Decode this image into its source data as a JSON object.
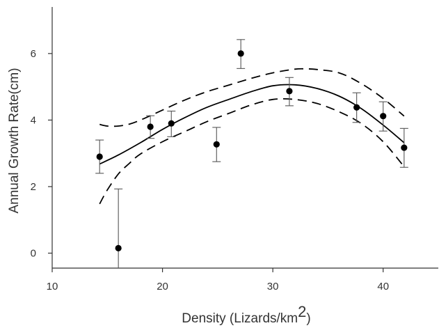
{
  "chart_data": {
    "type": "scatter",
    "xlabel": "Density (Lizards/km",
    "xlabel_sup": "2",
    "xlabel_close": ")",
    "ylabel": "Annual Growth Rate(cm)",
    "xlim": [
      10,
      45
    ],
    "ylim": [
      -0.45,
      7.4
    ],
    "x_ticks": [
      10,
      20,
      30,
      40
    ],
    "y_ticks": [
      0,
      2,
      4,
      6
    ],
    "grid": false,
    "points": [
      {
        "x": 14.3,
        "y": 2.9,
        "err_low": 2.4,
        "err_high": 3.4
      },
      {
        "x": 16.0,
        "y": 0.15,
        "err_low": -0.45,
        "err_high": 1.93
      },
      {
        "x": 18.9,
        "y": 3.8,
        "err_low": 3.45,
        "err_high": 4.13
      },
      {
        "x": 20.8,
        "y": 3.9,
        "err_low": 3.5,
        "err_high": 4.27
      },
      {
        "x": 24.9,
        "y": 3.27,
        "err_low": 2.75,
        "err_high": 3.78
      },
      {
        "x": 27.1,
        "y": 6.0,
        "err_low": 5.55,
        "err_high": 6.42
      },
      {
        "x": 31.5,
        "y": 4.87,
        "err_low": 4.43,
        "err_high": 5.28
      },
      {
        "x": 37.6,
        "y": 4.38,
        "err_low": 3.93,
        "err_high": 4.82
      },
      {
        "x": 40.0,
        "y": 4.12,
        "err_low": 3.67,
        "err_high": 4.55
      },
      {
        "x": 41.9,
        "y": 3.17,
        "err_low": 2.58,
        "err_high": 3.75
      }
    ],
    "fit_curve": {
      "x": [
        14.3,
        16,
        18,
        20,
        22,
        24,
        26,
        28,
        30,
        32,
        34,
        36,
        38,
        40,
        41.9
      ],
      "y": [
        2.68,
        2.95,
        3.32,
        3.72,
        4.07,
        4.38,
        4.62,
        4.85,
        5.03,
        5.06,
        4.95,
        4.72,
        4.35,
        3.85,
        3.32
      ]
    },
    "upper_band": {
      "x": [
        14.3,
        15,
        16,
        17,
        18,
        20,
        22,
        24,
        26,
        28,
        30,
        32,
        33,
        34,
        36,
        38,
        40,
        41.9
      ],
      "y": [
        3.87,
        3.82,
        3.82,
        3.88,
        4.0,
        4.3,
        4.6,
        4.85,
        5.05,
        5.25,
        5.42,
        5.53,
        5.54,
        5.52,
        5.42,
        5.1,
        4.65,
        4.12
      ]
    },
    "lower_band": {
      "x": [
        14.3,
        15,
        16,
        17,
        18,
        20,
        22,
        24,
        26,
        28,
        30,
        32,
        34,
        36,
        38,
        40,
        41.9
      ],
      "y": [
        1.48,
        1.9,
        2.38,
        2.7,
        2.98,
        3.35,
        3.65,
        3.95,
        4.2,
        4.45,
        4.62,
        4.62,
        4.5,
        4.25,
        3.9,
        3.35,
        2.6
      ]
    }
  }
}
